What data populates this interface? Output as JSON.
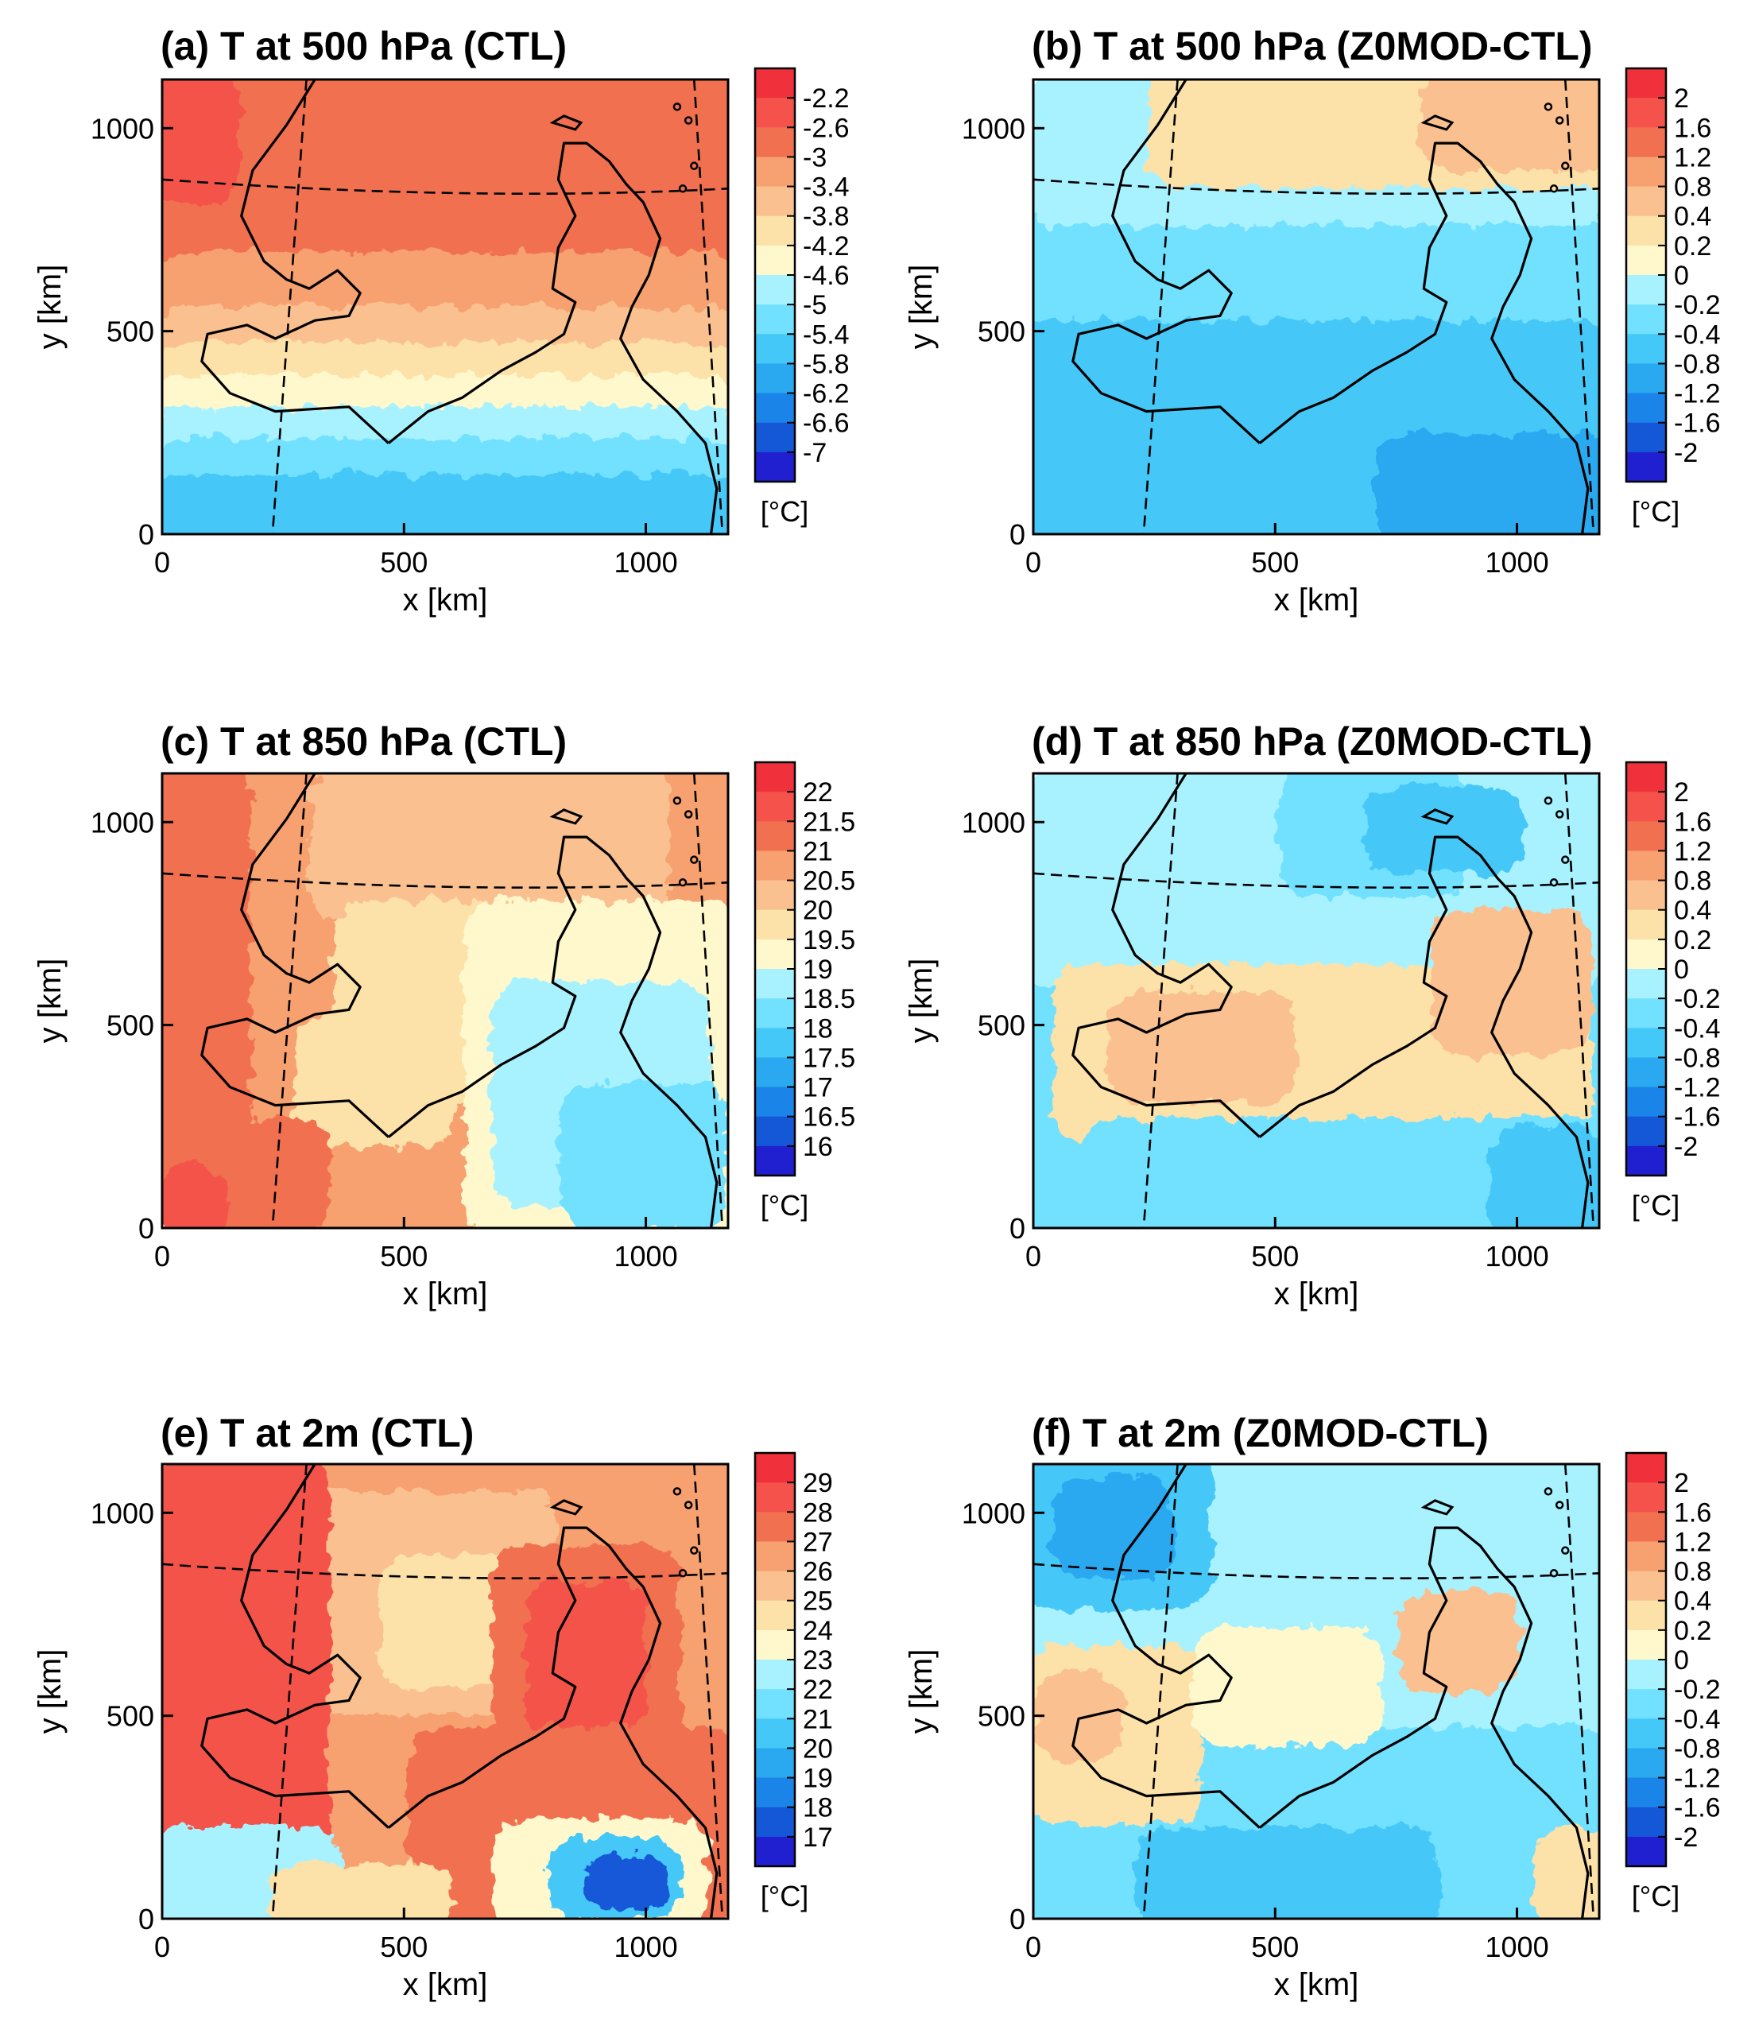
{
  "figure": {
    "panels": [
      {
        "id": "a",
        "title": "(a) T at 500 hPa (CTL)",
        "kind": "ctl500"
      },
      {
        "id": "b",
        "title": "(b) T at 500 hPa (Z0MOD-CTL)",
        "kind": "diff500"
      },
      {
        "id": "c",
        "title": "(c) T at 850 hPa (CTL)",
        "kind": "ctl850"
      },
      {
        "id": "d",
        "title": "(d) T at 850 hPa (Z0MOD-CTL)",
        "kind": "diff850"
      },
      {
        "id": "e",
        "title": "(e) T at 2m (CTL)",
        "kind": "ctl2m"
      },
      {
        "id": "f",
        "title": "(f) T at 2m (Z0MOD-CTL)",
        "kind": "diff2m"
      }
    ],
    "x_label": "x [km]",
    "y_label": "y [km]",
    "unit_label": "[°C]",
    "x_ticks": [
      "0",
      "500",
      "1000"
    ],
    "y_ticks": [
      "0",
      "500",
      "1000"
    ]
  },
  "chart_data": [
    {
      "type": "heatmap",
      "title": "(a) T at 500 hPa (CTL)",
      "xlabel": "x [km]",
      "ylabel": "y [km]",
      "xlim": [
        0,
        1170
      ],
      "ylim": [
        0,
        1120
      ],
      "colorbar_unit": "[°C]",
      "colorbar_levels": [
        "-2.2",
        "-2.6",
        "-3",
        "-3.4",
        "-3.8",
        "-4.2",
        "-4.6",
        "-5",
        "-5.4",
        "-5.8",
        "-6.2",
        "-6.6",
        "-7"
      ],
      "colors": [
        "#f0303a",
        "#f4524a",
        "#f07050",
        "#f7a070",
        "#fac090",
        "#fce1a8",
        "#fff8cc",
        "#a8f2ff",
        "#72e0ff",
        "#44c8f8",
        "#2aa8f0",
        "#1a84e8",
        "#1458d8",
        "#2020d0"
      ]
    },
    {
      "type": "heatmap",
      "title": "(b) T at 500 hPa (Z0MOD-CTL)",
      "xlabel": "x [km]",
      "ylabel": "y [km]",
      "xlim": [
        0,
        1170
      ],
      "ylim": [
        0,
        1120
      ],
      "colorbar_unit": "[°C]",
      "colorbar_levels": [
        "2",
        "1.6",
        "1.2",
        "0.8",
        "0.4",
        "0.2",
        "0",
        "-0.2",
        "-0.4",
        "-0.8",
        "-1.2",
        "-1.6",
        "-2"
      ],
      "colors": [
        "#f0303a",
        "#f4524a",
        "#f07050",
        "#f7a070",
        "#fac090",
        "#fce1a8",
        "#fff8cc",
        "#a8f2ff",
        "#72e0ff",
        "#44c8f8",
        "#2aa8f0",
        "#1a84e8",
        "#1458d8",
        "#2020d0"
      ]
    },
    {
      "type": "heatmap",
      "title": "(c) T at 850 hPa (CTL)",
      "xlabel": "x [km]",
      "ylabel": "y [km]",
      "xlim": [
        0,
        1170
      ],
      "ylim": [
        0,
        1120
      ],
      "colorbar_unit": "[°C]",
      "colorbar_levels": [
        "22",
        "21.5",
        "21",
        "20.5",
        "20",
        "19.5",
        "19",
        "18.5",
        "18",
        "17.5",
        "17",
        "16.5",
        "16"
      ],
      "colors": [
        "#f0303a",
        "#f4524a",
        "#f07050",
        "#f7a070",
        "#fac090",
        "#fce1a8",
        "#fff8cc",
        "#a8f2ff",
        "#72e0ff",
        "#44c8f8",
        "#2aa8f0",
        "#1a84e8",
        "#1458d8",
        "#2020d0"
      ]
    },
    {
      "type": "heatmap",
      "title": "(d) T at 850 hPa (Z0MOD-CTL)",
      "xlabel": "x [km]",
      "ylabel": "y [km]",
      "xlim": [
        0,
        1170
      ],
      "ylim": [
        0,
        1120
      ],
      "colorbar_unit": "[°C]",
      "colorbar_levels": [
        "2",
        "1.6",
        "1.2",
        "0.8",
        "0.4",
        "0.2",
        "0",
        "-0.2",
        "-0.4",
        "-0.8",
        "-1.2",
        "-1.6",
        "-2"
      ],
      "colors": [
        "#f0303a",
        "#f4524a",
        "#f07050",
        "#f7a070",
        "#fac090",
        "#fce1a8",
        "#fff8cc",
        "#a8f2ff",
        "#72e0ff",
        "#44c8f8",
        "#2aa8f0",
        "#1a84e8",
        "#1458d8",
        "#2020d0"
      ]
    },
    {
      "type": "heatmap",
      "title": "(e) T at 2m (CTL)",
      "xlabel": "x [km]",
      "ylabel": "y [km]",
      "xlim": [
        0,
        1170
      ],
      "ylim": [
        0,
        1120
      ],
      "colorbar_unit": "[°C]",
      "colorbar_levels": [
        "29",
        "28",
        "27",
        "26",
        "25",
        "24",
        "23",
        "22",
        "21",
        "20",
        "19",
        "18",
        "17"
      ],
      "colors": [
        "#f0303a",
        "#f4524a",
        "#f07050",
        "#f7a070",
        "#fac090",
        "#fce1a8",
        "#fff8cc",
        "#a8f2ff",
        "#72e0ff",
        "#44c8f8",
        "#2aa8f0",
        "#1a84e8",
        "#1458d8",
        "#2020d0"
      ]
    },
    {
      "type": "heatmap",
      "title": "(f) T at 2m (Z0MOD-CTL)",
      "xlabel": "x [km]",
      "ylabel": "y [km]",
      "xlim": [
        0,
        1170
      ],
      "ylim": [
        0,
        1120
      ],
      "colorbar_unit": "[°C]",
      "colorbar_levels": [
        "2",
        "1.6",
        "1.2",
        "0.8",
        "0.4",
        "0.2",
        "0",
        "-0.2",
        "-0.4",
        "-0.8",
        "-1.2",
        "-1.6",
        "-2"
      ],
      "colors": [
        "#f0303a",
        "#f4524a",
        "#f07050",
        "#f7a070",
        "#fac090",
        "#fce1a8",
        "#fff8cc",
        "#a8f2ff",
        "#72e0ff",
        "#44c8f8",
        "#2aa8f0",
        "#1a84e8",
        "#1458d8",
        "#2020d0"
      ]
    }
  ]
}
